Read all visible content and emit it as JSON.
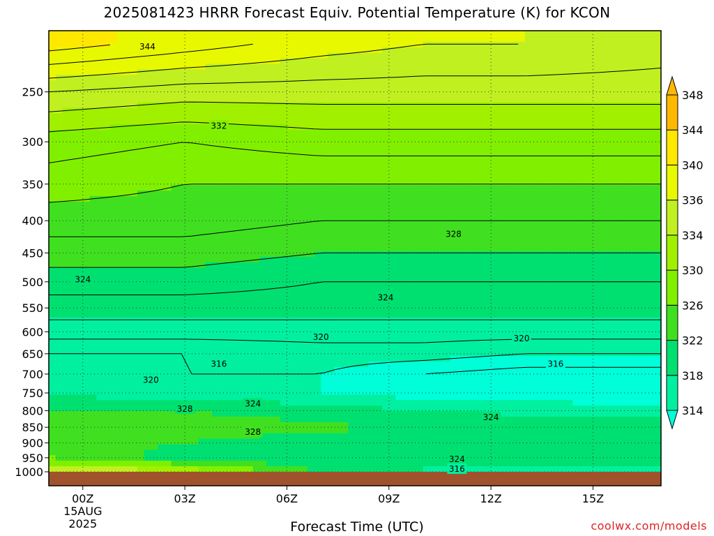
{
  "chart_data": {
    "type": "heatmap",
    "title": "2025081423 HRRR Forecast Equiv. Potential Temperature (K) for KCON",
    "xlabel": "Forecast Time (UTC)",
    "ylabel": "",
    "x_ticks": [
      {
        "label": "00Z",
        "hour": 0,
        "sub": [
          "15AUG",
          "2025"
        ]
      },
      {
        "label": "03Z",
        "hour": 3,
        "sub": []
      },
      {
        "label": "06Z",
        "hour": 6,
        "sub": []
      },
      {
        "label": "09Z",
        "hour": 9,
        "sub": []
      },
      {
        "label": "12Z",
        "hour": 12,
        "sub": []
      },
      {
        "label": "15Z",
        "hour": 15,
        "sub": []
      }
    ],
    "xlim_hours": [
      -1,
      17
    ],
    "y_ticks": [
      250,
      300,
      350,
      400,
      450,
      500,
      550,
      600,
      650,
      700,
      750,
      800,
      850,
      900,
      950,
      1000
    ],
    "ylim_hPa": [
      200,
      1000
    ],
    "y_scale": "log",
    "colorbar": {
      "levels": [
        314,
        318,
        322,
        326,
        330,
        334,
        336,
        340,
        344,
        348
      ],
      "colors": [
        "#00ffd8",
        "#00f0a0",
        "#00e070",
        "#40e020",
        "#80f000",
        "#a0f000",
        "#c0f020",
        "#e8f800",
        "#ffe800",
        "#ffb800"
      ],
      "min": 312,
      "max": 350
    },
    "column_profiles": {
      "hours": [
        -1,
        3,
        7,
        10,
        13,
        17
      ],
      "levels_hPa": [
        210,
        250,
        300,
        350,
        400,
        450,
        500,
        550,
        600,
        650,
        700,
        750,
        800,
        850,
        900,
        950,
        990
      ],
      "values_K": [
        [
          345,
          338,
          333,
          331,
          329,
          327,
          325,
          323,
          321,
          318,
          319,
          321,
          326,
          328,
          328,
          330,
          338
        ],
        [
          343,
          337,
          332,
          330,
          329,
          327,
          325,
          323,
          321,
          318,
          318,
          320,
          326,
          328,
          326,
          324,
          335
        ],
        [
          341,
          337,
          333,
          330,
          328,
          326,
          324,
          323,
          321,
          319,
          318,
          318,
          324,
          327,
          324,
          322,
          325
        ],
        [
          340,
          337,
          333,
          330,
          328,
          326,
          324,
          323,
          321,
          319,
          316,
          316,
          322,
          325,
          324,
          323,
          322
        ],
        [
          340,
          337,
          333,
          330,
          328,
          326,
          324,
          323,
          321,
          318,
          315,
          315,
          321,
          324,
          324,
          326,
          320
        ],
        [
          339,
          337,
          333,
          330,
          328,
          326,
          324,
          323,
          321,
          318,
          315,
          314,
          320,
          324,
          325,
          323,
          322
        ]
      ]
    },
    "contour_labels": [
      {
        "text": "344",
        "hour": 1.9,
        "hPa": 212
      },
      {
        "text": "332",
        "hour": 4.0,
        "hPa": 283
      },
      {
        "text": "328",
        "hour": 10.9,
        "hPa": 420
      },
      {
        "text": "324",
        "hour": 0.0,
        "hPa": 496
      },
      {
        "text": "324",
        "hour": 8.9,
        "hPa": 530
      },
      {
        "text": "320",
        "hour": 7.0,
        "hPa": 612
      },
      {
        "text": "320",
        "hour": 12.9,
        "hPa": 615
      },
      {
        "text": "316",
        "hour": 4.0,
        "hPa": 675
      },
      {
        "text": "316",
        "hour": 13.9,
        "hPa": 675
      },
      {
        "text": "320",
        "hour": 2.0,
        "hPa": 715
      },
      {
        "text": "328",
        "hour": 3.0,
        "hPa": 795
      },
      {
        "text": "324",
        "hour": 5.0,
        "hPa": 780
      },
      {
        "text": "324",
        "hour": 12.0,
        "hPa": 820
      },
      {
        "text": "328",
        "hour": 5.0,
        "hPa": 865
      },
      {
        "text": "324",
        "hour": 11.0,
        "hPa": 955
      },
      {
        "text": "316",
        "hour": 11.0,
        "hPa": 990
      }
    ],
    "grid": true,
    "ground_color": "#a0522d"
  },
  "credit": "coolwx.com/models"
}
